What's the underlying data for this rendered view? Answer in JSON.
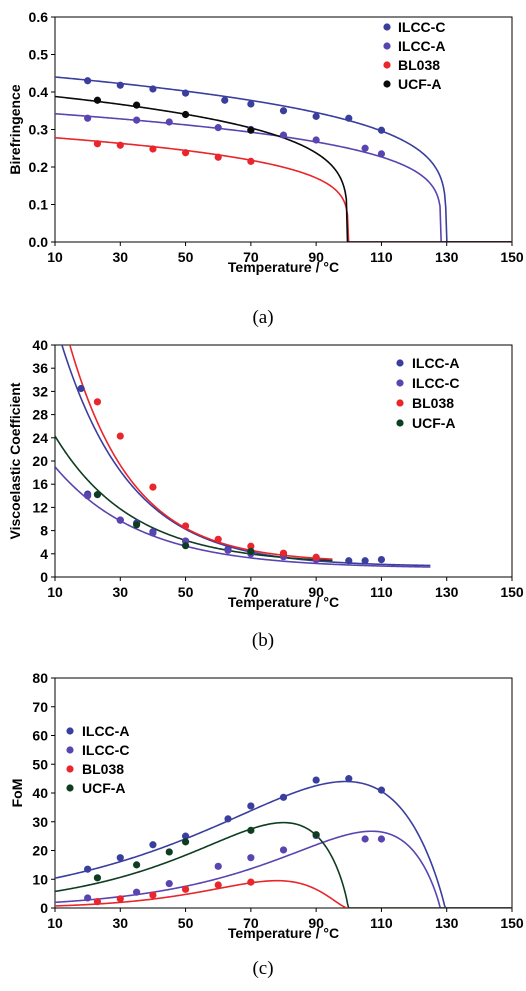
{
  "colors": {
    "ILCC-A": "#3a3f9e",
    "ILCC-C": "#5a45b0",
    "BL038": "#e8262b",
    "UCF-A": "#0a0a0a",
    "UCF-A-c": "#0f3d22"
  },
  "chart_data": [
    {
      "type": "scatter",
      "panel_caption": "(a)",
      "xlabel": "Temperature /",
      "xunit": "°C",
      "ylabel": "Birefringence",
      "xlim": [
        10,
        150
      ],
      "ylim": [
        0,
        0.6
      ],
      "xticks": [
        "10",
        "30",
        "50",
        "70",
        "90",
        "110",
        "130",
        "150"
      ],
      "yticks": [
        "0.0",
        "0.1",
        "0.2",
        "0.3",
        "0.4",
        "0.5",
        "0.6"
      ],
      "legend_position": "top-right",
      "legend": [
        {
          "label": "ILCC-C",
          "color_key": "ILCC-A"
        },
        {
          "label": "ILCC-A",
          "color_key": "ILCC-C"
        },
        {
          "label": "BL038",
          "color_key": "BL038"
        },
        {
          "label": "UCF-A",
          "color_key": "UCF-A"
        }
      ],
      "series": [
        {
          "name": "ILCC-C",
          "color_key": "ILCC-A",
          "points": [
            [
              20,
              0.43
            ],
            [
              30,
              0.418
            ],
            [
              40,
              0.408
            ],
            [
              50,
              0.397
            ],
            [
              62,
              0.378
            ],
            [
              70,
              0.368
            ],
            [
              80,
              0.35
            ],
            [
              90,
              0.335
            ],
            [
              100,
              0.33
            ],
            [
              110,
              0.298
            ]
          ],
          "fit": {
            "tc": 129.8,
            "a": 0.44,
            "x0": 10
          }
        },
        {
          "name": "ILCC-A",
          "color_key": "ILCC-C",
          "points": [
            [
              20,
              0.33
            ],
            [
              35,
              0.325
            ],
            [
              45,
              0.32
            ],
            [
              60,
              0.305
            ],
            [
              70,
              0.3
            ],
            [
              80,
              0.285
            ],
            [
              90,
              0.272
            ],
            [
              105,
              0.25
            ],
            [
              110,
              0.235
            ]
          ],
          "fit": {
            "tc": 128.3,
            "a": 0.342,
            "x0": 10
          }
        },
        {
          "name": "BL038",
          "color_key": "BL038",
          "points": [
            [
              23,
              0.262
            ],
            [
              30,
              0.258
            ],
            [
              40,
              0.248
            ],
            [
              50,
              0.238
            ],
            [
              60,
              0.226
            ],
            [
              70,
              0.215
            ]
          ],
          "fit": {
            "tc": 99.8,
            "a": 0.278,
            "x0": 10
          }
        },
        {
          "name": "UCF-A",
          "color_key": "UCF-A",
          "points": [
            [
              23,
              0.378
            ],
            [
              35,
              0.365
            ],
            [
              50,
              0.34
            ],
            [
              70,
              0.298
            ]
          ],
          "fit": {
            "tc": 99.6,
            "a": 0.388,
            "x0": 10
          }
        }
      ]
    },
    {
      "type": "scatter",
      "panel_caption": "(b)",
      "xlabel": "Temperature /",
      "xunit": "°C",
      "ylabel": "Viscoelastic Coefficient",
      "xlim": [
        10,
        150
      ],
      "ylim": [
        0,
        40
      ],
      "xticks": [
        "10",
        "30",
        "50",
        "70",
        "90",
        "110",
        "130",
        "150"
      ],
      "yticks": [
        "0",
        "4",
        "8",
        "12",
        "16",
        "20",
        "24",
        "28",
        "32",
        "36",
        "40"
      ],
      "legend_position": "top-right",
      "legend": [
        {
          "label": "ILCC-A",
          "color_key": "ILCC-A"
        },
        {
          "label": "ILCC-C",
          "color_key": "ILCC-C"
        },
        {
          "label": "BL038",
          "color_key": "BL038"
        },
        {
          "label": "UCF-A",
          "color_key": "UCF-A-c"
        }
      ],
      "series": [
        {
          "name": "ILCC-A",
          "color_key": "ILCC-A",
          "points": [
            [
              18,
              32.5
            ],
            [
              20,
              14.3
            ],
            [
              30,
              9.8
            ],
            [
              35,
              9.3
            ],
            [
              40,
              7.8
            ],
            [
              50,
              6.2
            ],
            [
              63,
              4.8
            ],
            [
              70,
              4.3
            ],
            [
              80,
              3.8
            ],
            [
              90,
              3.2
            ],
            [
              100,
              2.8
            ],
            [
              105,
              2.8
            ],
            [
              110,
              3.0
            ]
          ],
          "fit": {
            "kind": "exp",
            "x": [
              10,
              125
            ],
            "y0": 44.0,
            "yinf": 1.8,
            "k": 0.047
          }
        },
        {
          "name": "ILCC-C",
          "color_key": "ILCC-C",
          "points": [
            [
              20,
              14.0
            ],
            [
              30,
              9.8
            ],
            [
              40,
              7.6
            ],
            [
              50,
              6.2
            ],
            [
              63,
              4.6
            ],
            [
              70,
              4.0
            ],
            [
              80,
              3.5
            ],
            [
              90,
              3.0
            ]
          ],
          "fit": {
            "kind": "exp",
            "x": [
              10,
              125
            ],
            "y0": 19.0,
            "yinf": 1.5,
            "k": 0.038
          }
        },
        {
          "name": "BL038",
          "color_key": "BL038",
          "points": [
            [
              23,
              30.2
            ],
            [
              30,
              24.3
            ],
            [
              40,
              15.5
            ],
            [
              50,
              8.8
            ],
            [
              60,
              6.5
            ],
            [
              70,
              5.3
            ],
            [
              80,
              4.1
            ],
            [
              90,
              3.4
            ]
          ],
          "fit": {
            "kind": "exp",
            "x": [
              10,
              95
            ],
            "y0": 50.0,
            "yinf": 2.5,
            "k": 0.052
          }
        },
        {
          "name": "UCF-A",
          "color_key": "UCF-A-c",
          "points": [
            [
              23,
              14.2
            ],
            [
              35,
              9.0
            ],
            [
              50,
              5.4
            ],
            [
              70,
              4.4
            ]
          ],
          "fit": {
            "kind": "exp",
            "x": [
              10,
              95
            ],
            "y0": 24.3,
            "yinf": 2.2,
            "k": 0.042
          }
        }
      ]
    },
    {
      "type": "scatter",
      "panel_caption": "(c)",
      "xlabel": "Temperature /",
      "xunit": "°C",
      "ylabel": "FoM",
      "xlim": [
        10,
        150
      ],
      "ylim": [
        0,
        80
      ],
      "xticks": [
        "10",
        "30",
        "50",
        "70",
        "90",
        "110",
        "130",
        "150"
      ],
      "yticks": [
        "0",
        "10",
        "20",
        "30",
        "40",
        "50",
        "60",
        "70",
        "80"
      ],
      "legend_position": "top-left",
      "legend": [
        {
          "label": "ILCC-A",
          "color_key": "ILCC-A"
        },
        {
          "label": "ILCC-C",
          "color_key": "ILCC-C"
        },
        {
          "label": "BL038",
          "color_key": "BL038"
        },
        {
          "label": "UCF-A",
          "color_key": "UCF-A-c"
        }
      ],
      "series": [
        {
          "name": "ILCC-A",
          "color_key": "ILCC-A",
          "points": [
            [
              20,
              13.5
            ],
            [
              30,
              17.5
            ],
            [
              40,
              22
            ],
            [
              50,
              25
            ],
            [
              63,
              31
            ],
            [
              70,
              35.5
            ],
            [
              80,
              38.5
            ],
            [
              90,
              44.5
            ],
            [
              100,
              45
            ],
            [
              110,
              41
            ]
          ],
          "fit": {
            "kind": "dome",
            "tc": 129.5,
            "x0": 10,
            "y_start": 10.5,
            "peak_x": 99,
            "peak_y": 44.0
          }
        },
        {
          "name": "ILCC-C",
          "color_key": "ILCC-C",
          "points": [
            [
              20,
              3.5
            ],
            [
              35,
              5.5
            ],
            [
              45,
              8.5
            ],
            [
              60,
              14.5
            ],
            [
              70,
              17.5
            ],
            [
              80,
              20.2
            ],
            [
              90,
              25.2
            ],
            [
              105,
              24
            ],
            [
              110,
              24
            ]
          ],
          "fit": {
            "kind": "dome",
            "tc": 128.0,
            "x0": 10,
            "y_start": 2.0,
            "peak_x": 107,
            "peak_y": 26.7
          }
        },
        {
          "name": "BL038",
          "color_key": "BL038",
          "points": [
            [
              23,
              2.2
            ],
            [
              30,
              3.2
            ],
            [
              40,
              4.5
            ],
            [
              50,
              6.5
            ],
            [
              60,
              8.0
            ],
            [
              70,
              9.0
            ]
          ],
          "fit": {
            "kind": "dome",
            "tc": 99.6,
            "x0": 10,
            "y_start": 0.5,
            "peak_x": 78,
            "peak_y": 9.5
          }
        },
        {
          "name": "UCF-A",
          "color_key": "UCF-A-c",
          "points": [
            [
              23,
              10.5
            ],
            [
              35,
              15
            ],
            [
              45,
              19.5
            ],
            [
              50,
              23
            ],
            [
              70,
              27
            ],
            [
              90,
              25.5
            ]
          ],
          "fit": {
            "kind": "dome",
            "tc": 99.8,
            "x0": 10,
            "y_start": 6.0,
            "peak_x": 80,
            "peak_y": 29.7
          }
        }
      ]
    }
  ]
}
